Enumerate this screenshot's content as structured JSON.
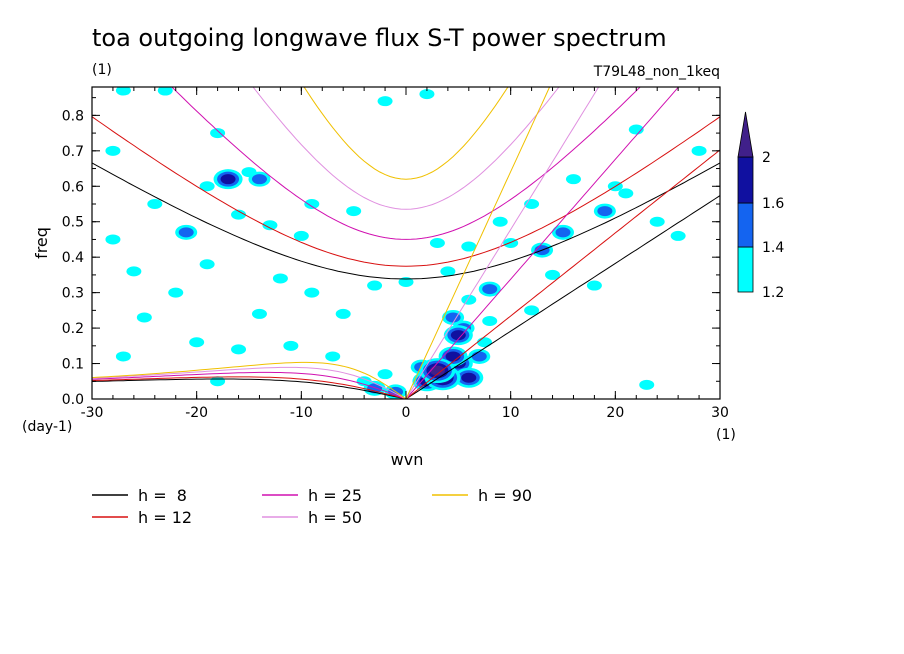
{
  "chart_data": {
    "type": "heatmap",
    "title": "toa outgoing longwave flux S-T power spectrum",
    "subtitle_left": "(1)",
    "subtitle_right": "T79L48_non_1keq",
    "xlabel": "wvn",
    "ylabel": "freq",
    "x_unit": "(1)",
    "y_unit": "(day-1)",
    "xlim": [
      -30,
      30
    ],
    "ylim": [
      0,
      0.88
    ],
    "x_ticks": [
      -30,
      -20,
      -10,
      0,
      10,
      20,
      30
    ],
    "x_tick_labels": [
      "-30",
      "-20",
      "-10",
      "0",
      "10",
      "20",
      "30"
    ],
    "y_ticks": [
      0.0,
      0.1,
      0.2,
      0.3,
      0.4,
      0.5,
      0.6,
      0.7,
      0.8
    ],
    "y_tick_labels": [
      "0.0",
      "0.1",
      "0.2",
      "0.3",
      "0.4",
      "0.5",
      "0.6",
      "0.7",
      "0.8"
    ],
    "colorbar": {
      "levels": [
        1.2,
        1.4,
        1.6,
        2
      ],
      "level_labels": [
        "1.2",
        "1.4",
        "1.6",
        "2"
      ],
      "colors": [
        "#00ffff",
        "#1464f0",
        "#1010a0",
        "#40208a"
      ]
    },
    "dispersion_curves": [
      {
        "name": "h =  8",
        "h": 8,
        "color": "#000000"
      },
      {
        "name": "h = 12",
        "h": 12,
        "color": "#d81010"
      },
      {
        "name": "h = 25",
        "h": 25,
        "color": "#d010b0"
      },
      {
        "name": "h = 50",
        "h": 50,
        "color": "#e090e0"
      },
      {
        "name": "h = 90",
        "h": 90,
        "color": "#f0c000"
      }
    ],
    "features": [
      {
        "k": 3.5,
        "f": 0.06,
        "level": 4
      },
      {
        "k": 3,
        "f": 0.08,
        "level": 4
      },
      {
        "k": 5,
        "f": 0.1,
        "level": 3
      },
      {
        "k": 5,
        "f": 0.18,
        "level": 3
      },
      {
        "k": 4.5,
        "f": 0.12,
        "level": 3
      },
      {
        "k": 2,
        "f": 0.05,
        "level": 3
      },
      {
        "k": 6,
        "f": 0.06,
        "level": 3
      },
      {
        "k": 5.5,
        "f": 0.2,
        "level": 2
      },
      {
        "k": 4.5,
        "f": 0.23,
        "level": 2
      },
      {
        "k": 7,
        "f": 0.12,
        "level": 2
      },
      {
        "k": 1.5,
        "f": 0.09,
        "level": 2
      },
      {
        "k": 6,
        "f": 0.28,
        "level": 1
      },
      {
        "k": 7.5,
        "f": 0.16,
        "level": 1
      },
      {
        "k": -17,
        "f": 0.62,
        "level": 3
      },
      {
        "k": -14,
        "f": 0.62,
        "level": 2
      },
      {
        "k": -21,
        "f": 0.47,
        "level": 2
      },
      {
        "k": -3,
        "f": 0.03,
        "level": 2
      },
      {
        "k": -1,
        "f": 0.02,
        "level": 2
      },
      {
        "k": 8,
        "f": 0.31,
        "level": 2
      },
      {
        "k": 13,
        "f": 0.42,
        "level": 2
      },
      {
        "k": 15,
        "f": 0.47,
        "level": 2
      },
      {
        "k": 19,
        "f": 0.53,
        "level": 2
      },
      {
        "k": -28,
        "f": 0.7,
        "level": 1
      },
      {
        "k": -24,
        "f": 0.55,
        "level": 1
      },
      {
        "k": -19,
        "f": 0.6,
        "level": 1
      },
      {
        "k": -16,
        "f": 0.52,
        "level": 1
      },
      {
        "k": -15,
        "f": 0.64,
        "level": 1
      },
      {
        "k": -18,
        "f": 0.75,
        "level": 1
      },
      {
        "k": -23,
        "f": 0.87,
        "level": 1
      },
      {
        "k": -27,
        "f": 0.87,
        "level": 1
      },
      {
        "k": -13,
        "f": 0.49,
        "level": 1
      },
      {
        "k": -9,
        "f": 0.55,
        "level": 1
      },
      {
        "k": -5,
        "f": 0.53,
        "level": 1
      },
      {
        "k": -19,
        "f": 0.38,
        "level": 1
      },
      {
        "k": -22,
        "f": 0.3,
        "level": 1
      },
      {
        "k": -25,
        "f": 0.23,
        "level": 1
      },
      {
        "k": -28,
        "f": 0.45,
        "level": 1
      },
      {
        "k": -26,
        "f": 0.36,
        "level": 1
      },
      {
        "k": -14,
        "f": 0.24,
        "level": 1
      },
      {
        "k": -12,
        "f": 0.34,
        "level": 1
      },
      {
        "k": -9,
        "f": 0.3,
        "level": 1
      },
      {
        "k": -6,
        "f": 0.24,
        "level": 1
      },
      {
        "k": -16,
        "f": 0.14,
        "level": 1
      },
      {
        "k": -20,
        "f": 0.16,
        "level": 1
      },
      {
        "k": -27,
        "f": 0.12,
        "level": 1
      },
      {
        "k": -11,
        "f": 0.15,
        "level": 1
      },
      {
        "k": -7,
        "f": 0.12,
        "level": 1
      },
      {
        "k": -4,
        "f": 0.05,
        "level": 1
      },
      {
        "k": -2,
        "f": 0.07,
        "level": 1
      },
      {
        "k": -3,
        "f": 0.32,
        "level": 1
      },
      {
        "k": 0,
        "f": 0.33,
        "level": 1
      },
      {
        "k": 3,
        "f": 0.44,
        "level": 1
      },
      {
        "k": 6,
        "f": 0.43,
        "level": 1
      },
      {
        "k": 10,
        "f": 0.44,
        "level": 1
      },
      {
        "k": 12,
        "f": 0.55,
        "level": 1
      },
      {
        "k": 16,
        "f": 0.62,
        "level": 1
      },
      {
        "k": 20,
        "f": 0.6,
        "level": 1
      },
      {
        "k": 22,
        "f": 0.76,
        "level": 1
      },
      {
        "k": 24,
        "f": 0.5,
        "level": 1
      },
      {
        "k": 26,
        "f": 0.46,
        "level": 1
      },
      {
        "k": 18,
        "f": 0.32,
        "level": 1
      },
      {
        "k": 12,
        "f": 0.25,
        "level": 1
      },
      {
        "k": 23,
        "f": 0.04,
        "level": 1
      },
      {
        "k": 28,
        "f": 0.7,
        "level": 1
      },
      {
        "k": 21,
        "f": 0.58,
        "level": 1
      },
      {
        "k": 14,
        "f": 0.35,
        "level": 1
      },
      {
        "k": 9,
        "f": 0.5,
        "level": 1
      },
      {
        "k": -2,
        "f": 0.84,
        "level": 1
      },
      {
        "k": 2,
        "f": 0.86,
        "level": 1
      },
      {
        "k": -10,
        "f": 0.46,
        "level": 1
      },
      {
        "k": -18,
        "f": 0.05,
        "level": 1
      },
      {
        "k": 4,
        "f": 0.36,
        "level": 1
      },
      {
        "k": 8,
        "f": 0.22,
        "level": 1
      }
    ]
  }
}
